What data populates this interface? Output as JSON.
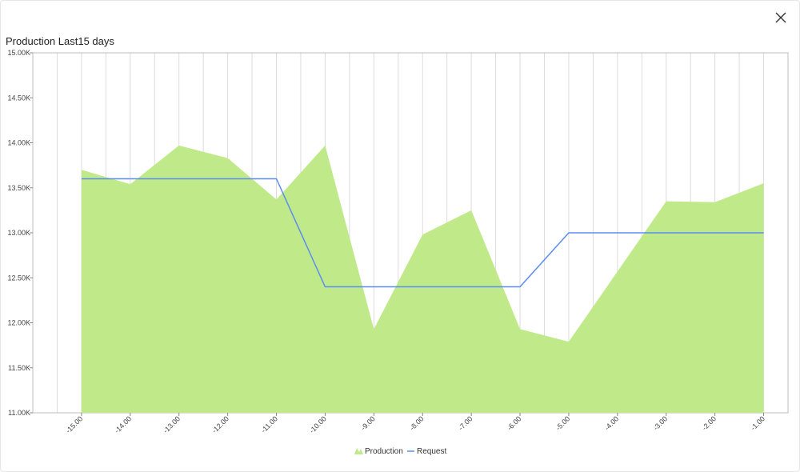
{
  "dialog": {
    "close_icon": "close-icon"
  },
  "chart_data": {
    "type": "area",
    "title": "Production Last15 days",
    "xlabel": "",
    "ylabel": "",
    "x": [
      -15,
      -14,
      -13,
      -12,
      -11,
      -10,
      -9,
      -8,
      -7,
      -6,
      -5,
      -4,
      -3,
      -2,
      -1
    ],
    "x_tick_labels": [
      "-15.00",
      "-14.00",
      "-13.00",
      "-12.00",
      "-11.00",
      "-10.00",
      "-9.00",
      "-8.00",
      "-7.00",
      "-6.00",
      "-5.00",
      "-4.00",
      "-3.00",
      "-2.00",
      "-1.00"
    ],
    "y_tick_labels": [
      "15.00K",
      "14.50K",
      "14.00K",
      "13.50K",
      "13.00K",
      "12.50K",
      "12.00K",
      "11.50K",
      "11.00K"
    ],
    "y_ticks": [
      15000,
      14500,
      14000,
      13500,
      13000,
      12500,
      12000,
      11500,
      11000
    ],
    "ylim": [
      11000,
      15000
    ],
    "xlim": [
      -16,
      -0.5
    ],
    "grid": "vertical",
    "legend_position": "bottom",
    "series": [
      {
        "name": "Production",
        "kind": "area",
        "color": "#c0e98a",
        "x": [
          -15,
          -14,
          -13,
          -12,
          -11,
          -10,
          -9,
          -8,
          -7,
          -6,
          -5,
          -4,
          -3,
          -2,
          -1
        ],
        "values": [
          13700,
          13540,
          13970,
          13830,
          13370,
          13970,
          11930,
          12980,
          13250,
          11930,
          11790,
          12570,
          13350,
          13340,
          13550
        ]
      },
      {
        "name": "Request",
        "kind": "line",
        "color": "#5b8def",
        "x": [
          -15,
          -11,
          -10,
          -6,
          -5,
          -1
        ],
        "values": [
          13600,
          13600,
          12400,
          12400,
          13000,
          13000
        ]
      }
    ]
  }
}
